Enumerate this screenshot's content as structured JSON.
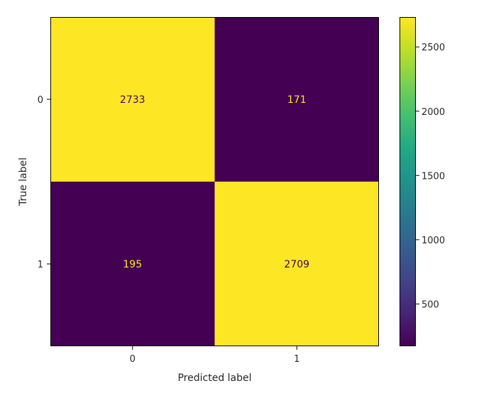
{
  "chart_data": {
    "type": "heatmap",
    "title": "",
    "xlabel": "Predicted label",
    "ylabel": "True label",
    "x_categories": [
      "0",
      "1"
    ],
    "y_categories": [
      "0",
      "1"
    ],
    "matrix": [
      [
        2733,
        171
      ],
      [
        195,
        2709
      ]
    ],
    "colormap": "viridis",
    "colorbar": {
      "min": 171,
      "max": 2733,
      "ticks": [
        500,
        1000,
        1500,
        2000,
        2500
      ],
      "tick_labels": [
        "500",
        "1000",
        "1500",
        "2000",
        "2500"
      ]
    },
    "colors": {
      "high": "#fde725",
      "low": "#440154",
      "text_on_high": "#440154",
      "text_on_low": "#fde725"
    }
  }
}
